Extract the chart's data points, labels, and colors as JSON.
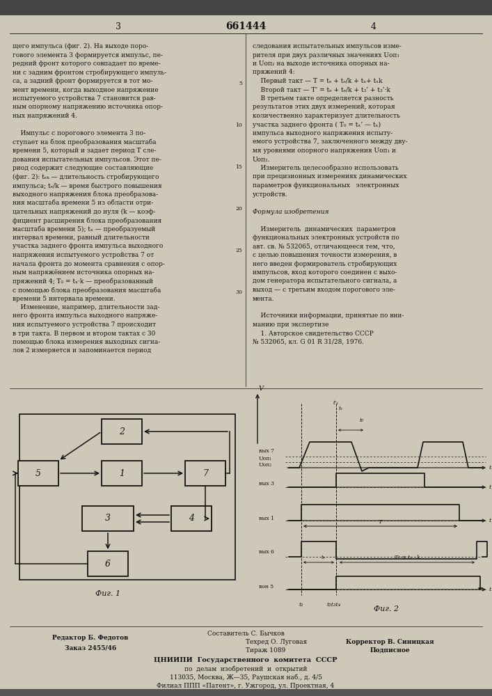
{
  "bg_color": "#cdc8b8",
  "text_color": "#111111",
  "title": "661444",
  "page_left": "3",
  "page_right": "4"
}
